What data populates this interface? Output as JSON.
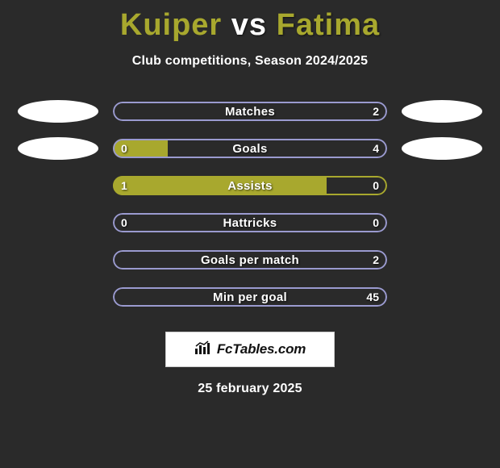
{
  "colors": {
    "player1": "#a8a82e",
    "player2": "#ffffff",
    "bar_border_p2": "#9a9acf",
    "background": "#2a2a2a"
  },
  "title": {
    "p1": "Kuiper",
    "vs": "vs",
    "p2": "Fatima"
  },
  "subtitle": "Club competitions, Season 2024/2025",
  "stats": [
    {
      "label": "Matches",
      "left_val": "",
      "right_val": "2",
      "left_pct": 0,
      "right_pct": 100,
      "show_left_val": false
    },
    {
      "label": "Goals",
      "left_val": "0",
      "right_val": "4",
      "left_pct": 20,
      "right_pct": 80,
      "show_left_val": true
    },
    {
      "label": "Assists",
      "left_val": "1",
      "right_val": "0",
      "left_pct": 78,
      "right_pct": 22,
      "show_left_val": true
    },
    {
      "label": "Hattricks",
      "left_val": "0",
      "right_val": "0",
      "left_pct": 0,
      "right_pct": 0,
      "show_left_val": true
    },
    {
      "label": "Goals per match",
      "left_val": "",
      "right_val": "2",
      "left_pct": 0,
      "right_pct": 100,
      "show_left_val": false
    },
    {
      "label": "Min per goal",
      "left_val": "",
      "right_val": "45",
      "left_pct": 0,
      "right_pct": 100,
      "show_left_val": false
    }
  ],
  "avatars": {
    "rows_with_avatars": [
      0,
      1
    ]
  },
  "footer": {
    "logo_text": "FcTables.com",
    "date": "25 february 2025"
  }
}
